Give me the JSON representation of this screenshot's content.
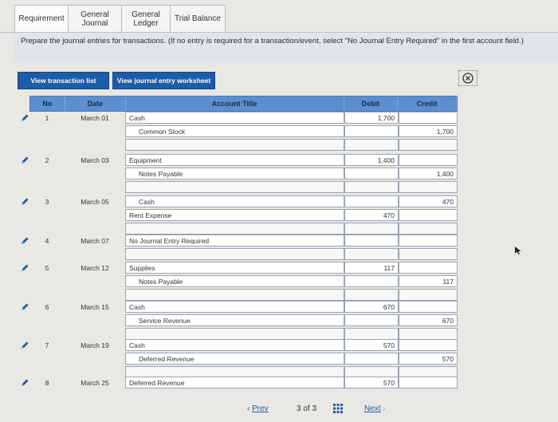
{
  "tabs": [
    "Requirement",
    "General Journal",
    "General Ledger",
    "Trial Balance"
  ],
  "tab_lines": [
    [
      "Requirement"
    ],
    [
      "General",
      "Journal"
    ],
    [
      "General",
      "Ledger"
    ],
    [
      "Trial Balance"
    ]
  ],
  "instruction": {
    "text": "Prepare the journal entries for transactions. (If no entry is required for a transaction/event, select \"No Journal Entry Required\" in the first account field.)"
  },
  "buttons": {
    "view_transaction_list": "View transaction list",
    "view_journal_worksheet": "View journal entry worksheet"
  },
  "table": {
    "headers": {
      "no": "No",
      "date": "Date",
      "account_title": "Account Title",
      "debit": "Debit",
      "credit": "Credit"
    },
    "entries": [
      {
        "no": "1",
        "date": "March 01",
        "lines": [
          {
            "account": "Cash",
            "debit": "1,700",
            "credit": "",
            "indent": false
          },
          {
            "account": "Common Stock",
            "debit": "",
            "credit": "1,700",
            "indent": true
          }
        ]
      },
      {
        "no": "2",
        "date": "March 03",
        "lines": [
          {
            "account": "Equipment",
            "debit": "1,400",
            "credit": "",
            "indent": false
          },
          {
            "account": "Notes Payable",
            "debit": "",
            "credit": "1,400",
            "indent": true
          }
        ]
      },
      {
        "no": "3",
        "date": "March 05",
        "lines": [
          {
            "account": "Cash",
            "debit": "",
            "credit": "470",
            "indent": true
          },
          {
            "account": "Rent Expense",
            "debit": "470",
            "credit": "",
            "indent": false
          }
        ]
      },
      {
        "no": "4",
        "date": "March 07",
        "lines": [
          {
            "account": "No Journal Entry Required",
            "debit": "",
            "credit": "",
            "indent": false
          }
        ]
      },
      {
        "no": "5",
        "date": "March 12",
        "lines": [
          {
            "account": "Supplies",
            "debit": "117",
            "credit": "",
            "indent": false
          },
          {
            "account": "Notes Payable",
            "debit": "",
            "credit": "117",
            "indent": true
          }
        ]
      },
      {
        "no": "6",
        "date": "March 15",
        "lines": [
          {
            "account": "Cash",
            "debit": "670",
            "credit": "",
            "indent": false
          },
          {
            "account": "Service Revenue",
            "debit": "",
            "credit": "670",
            "indent": true
          }
        ]
      },
      {
        "no": "7",
        "date": "March 19",
        "lines": [
          {
            "account": "Cash",
            "debit": "570",
            "credit": "",
            "indent": false
          },
          {
            "account": "Deferred Revenue",
            "debit": "",
            "credit": "570",
            "indent": true
          }
        ]
      },
      {
        "no": "8",
        "date": "March 25",
        "lines": [
          {
            "account": "Deferred Revenue",
            "debit": "570",
            "credit": "",
            "indent": false
          }
        ]
      }
    ]
  },
  "pagination": {
    "prev": "Prev",
    "page": "3",
    "of": "of",
    "total": "3",
    "next": "Next"
  },
  "colors": {
    "accent": "#1e5ba8",
    "header": "#5b8fcf",
    "instruction_bg": "#dfe5ee"
  },
  "icons": [
    "pencil-icon",
    "close-circle-icon",
    "grid-icon",
    "chevron-left-icon",
    "chevron-right-icon"
  ]
}
